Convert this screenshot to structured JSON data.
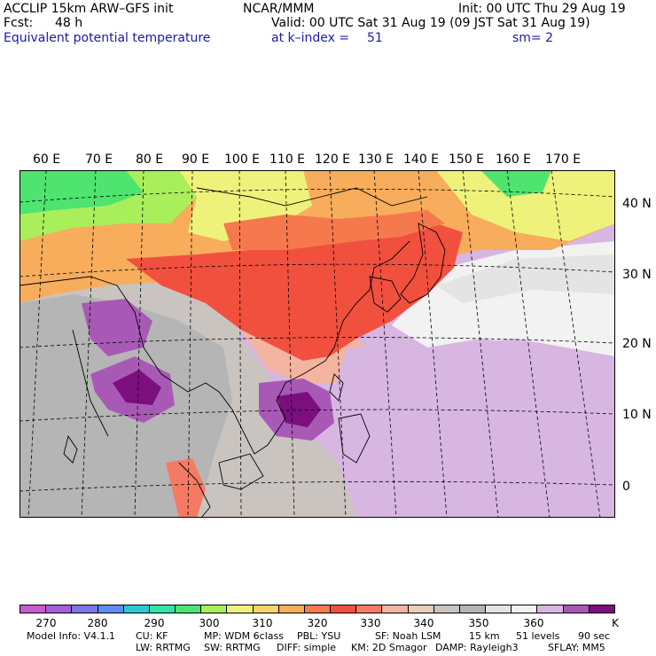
{
  "header": {
    "model": "ACCLIP 15km ARW–GFS init",
    "center": "NCAR/MMM",
    "init": "Init: 00 UTC Thu 29 Aug 19",
    "fcst_label": "Fcst:",
    "fcst_value": "48 h",
    "valid": "Valid: 00 UTC Sat 31 Aug 19 (09 JST Sat 31 Aug 19)",
    "field": "Equivalent potential temperature",
    "level": "at k–index =",
    "level_value": "51",
    "smoothing": "sm= 2"
  },
  "map": {
    "lon_labels": [
      "60 E",
      "70 E",
      "80 E",
      "90 E",
      "100 E",
      "110 E",
      "120 E",
      "130 E",
      "140 E",
      "150 E",
      "160 E",
      "170 E"
    ],
    "lat_labels": [
      "40 N",
      "30 N",
      "20 N",
      "10 N",
      "0"
    ],
    "regions": [
      {
        "name": "north-west-asia",
        "level": "300-310"
      },
      {
        "name": "central-asia-band",
        "level": "320-330"
      },
      {
        "name": "china-east-asia",
        "level": "330-340"
      },
      {
        "name": "india-bay-of-bengal",
        "level": "360-370"
      },
      {
        "name": "bay-of-bengal-core",
        "level": "370-380"
      },
      {
        "name": "south-china-sea-core",
        "level": "370-380"
      },
      {
        "name": "western-pacific",
        "level": "360-370"
      },
      {
        "name": "north-pacific",
        "level": "350-360"
      },
      {
        "name": "far-north-east",
        "level": "300-320"
      }
    ]
  },
  "colorbar": {
    "colors": [
      "#c75ad0",
      "#a360d8",
      "#7a78e6",
      "#5b8ef0",
      "#31c6d6",
      "#33e2a8",
      "#4ee46f",
      "#a9ef5c",
      "#eef27a",
      "#f5d36a",
      "#f7ad5c",
      "#f6794d",
      "#f2503f",
      "#f57a64",
      "#f3b4a0",
      "#e9cdb9",
      "#c9c4c0",
      "#b5b5b5",
      "#e4e4e4",
      "#f2f2f2",
      "#d8b6e2",
      "#a859b5",
      "#7b0f7d"
    ],
    "tick_labels": [
      "270",
      "280",
      "290",
      "300",
      "310",
      "320",
      "330",
      "340",
      "350",
      "360"
    ],
    "unit": "K"
  },
  "footer": {
    "line1": [
      "Model Info: V4.1.1",
      "CU: KF",
      "MP: WDM 6class",
      "PBL: YSU",
      "SF: Noah LSM",
      "15 km",
      "51 levels",
      "90 sec"
    ],
    "line2": [
      "LW: RRTMG",
      "SW: RRTMG",
      "DIFF: simple",
      "KM: 2D Smagor",
      "DAMP: Rayleigh3",
      "SFLAY: MM5"
    ]
  }
}
